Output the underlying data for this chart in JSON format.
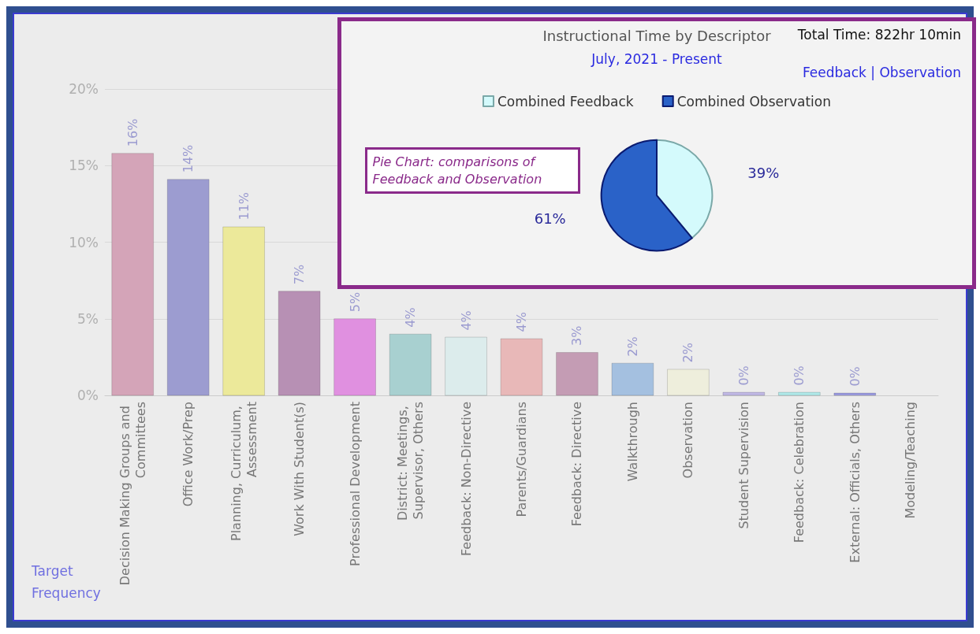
{
  "chart_data": [
    {
      "type": "bar",
      "categories": [
        "Decision Making Groups and Committees",
        "Office Work/Prep",
        "Planning, Curriculum, Assessment",
        "Work With Student(s)",
        "Professional Development",
        "District: Meetings, Supervisor, Others",
        "Feedback: Non-Directive",
        "Parents/Guardians",
        "Feedback: Directive",
        "Walkthrough",
        "Observation",
        "Student Supervision",
        "Feedback: Celebration",
        "External: Officials, Others",
        "Modeling/Teaching"
      ],
      "values": [
        15.8,
        14.1,
        11,
        6.8,
        5,
        4,
        3.8,
        3.7,
        2.8,
        2.1,
        1.7,
        0.2,
        0.2,
        0.15,
        null
      ],
      "value_labels": [
        "16%",
        "14%",
        "11%",
        "7%",
        "5%",
        "4%",
        "4%",
        "4%",
        "3%",
        "2%",
        "2%",
        "0%",
        "0%",
        "0%",
        null
      ],
      "colors": [
        "#d4a4b8",
        "#9c9cd0",
        "#ece99a",
        "#b790b4",
        "#e090e0",
        "#a8d0d0",
        "#dcecec",
        "#e8b8b8",
        "#c49cb4",
        "#a4c0e0",
        "#eeeedc",
        "#c0b8e4",
        "#b0e8e8",
        "#9c9ce0",
        "#cccccc"
      ],
      "ylim": [
        0,
        20
      ],
      "yticks": [
        {
          "value": 0,
          "label": "0%"
        },
        {
          "value": 5,
          "label": "5%"
        },
        {
          "value": 10,
          "label": "10%"
        },
        {
          "value": 15,
          "label": "15%"
        },
        {
          "value": 20,
          "label": "20%"
        }
      ],
      "grid": "y",
      "annotations": [
        "Target Frequency"
      ]
    },
    {
      "type": "pie",
      "title": "Instructional Time by Descriptor",
      "subtitle": "July, 2021 - Present",
      "categories": [
        "Combined Feedback",
        "Combined Observation"
      ],
      "values": [
        39,
        61
      ],
      "value_labels": [
        "39%",
        "61%"
      ],
      "colors": [
        "#d4fafc",
        "#2a62c8"
      ],
      "legend": "top",
      "annotations": [
        "Total Time: 822hr 10min",
        "Feedback | Observation",
        "Pie Chart: comparisons of Feedback and Observation"
      ]
    }
  ]
}
